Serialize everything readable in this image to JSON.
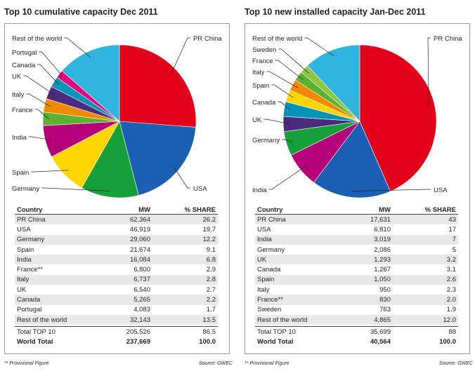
{
  "panels": [
    {
      "title": "Top 10 cumulative capacity Dec 2011",
      "table": {
        "headers": [
          "Country",
          "MW",
          "% SHARE"
        ],
        "rows": [
          [
            "PR China",
            "62,364",
            "26.2"
          ],
          [
            "USA",
            "46,919",
            "19.7"
          ],
          [
            "Germany",
            "29,060",
            "12.2"
          ],
          [
            "Spain",
            "21,674",
            "9.1"
          ],
          [
            "India",
            "16,084",
            "6.8"
          ],
          [
            "France**",
            "6,800",
            "2.9"
          ],
          [
            "Italy",
            "6,737",
            "2.8"
          ],
          [
            "UK",
            "6,540",
            "2.7"
          ],
          [
            "Canada",
            "5,265",
            "2.2"
          ],
          [
            "Portugal",
            "4,083",
            "1.7"
          ],
          [
            "Rest of the world",
            "32,143",
            "13.5"
          ]
        ],
        "total": [
          "Total TOP 10",
          "205,526",
          "86.5"
        ],
        "world": [
          "World Total",
          "237,669",
          "100.0"
        ]
      },
      "footnote": "** Provisional Figure",
      "source": "Source: GWEC"
    },
    {
      "title": "Top 10 new installed capacity Jan-Dec 2011",
      "table": {
        "headers": [
          "Country",
          "MW",
          "% SHARE"
        ],
        "rows": [
          [
            "PR China",
            "17,631",
            "43"
          ],
          [
            "USA",
            "6,810",
            "17"
          ],
          [
            "India",
            "3,019",
            "7"
          ],
          [
            "Germany",
            "2,086",
            "5"
          ],
          [
            "UK",
            "1,293",
            "3.2"
          ],
          [
            "Canada",
            "1,267",
            "3.1"
          ],
          [
            "Spain",
            "1,050",
            "2.6"
          ],
          [
            "Italy",
            "950",
            "2.3"
          ],
          [
            "France**",
            "830",
            "2.0"
          ],
          [
            "Sweden",
            "763",
            "1.9"
          ],
          [
            "Rest of the world",
            "4,865",
            "12.0"
          ]
        ],
        "total": [
          "Total TOP 10",
          "35,699",
          "88"
        ],
        "world": [
          "World Total",
          "40,564",
          "100.0"
        ]
      },
      "footnote": "** Provisional Figure",
      "source": "Source: GWEC"
    }
  ],
  "chart_data": [
    {
      "type": "pie",
      "title": "Top 10 cumulative capacity Dec 2011",
      "slices": [
        {
          "label": "PR China",
          "value": 62364,
          "color": "#e2001a"
        },
        {
          "label": "USA",
          "value": 46919,
          "color": "#1a5fb4"
        },
        {
          "label": "Germany",
          "value": 29060,
          "color": "#16a03a"
        },
        {
          "label": "Spain",
          "value": 21674,
          "color": "#ffd500"
        },
        {
          "label": "India",
          "value": 16084,
          "color": "#b5007a"
        },
        {
          "label": "France",
          "value": 6800,
          "color": "#5bb232"
        },
        {
          "label": "Italy",
          "value": 6737,
          "color": "#f18a00"
        },
        {
          "label": "UK",
          "value": 6540,
          "color": "#4a2b7d"
        },
        {
          "label": "Canada",
          "value": 5265,
          "color": "#0095b6"
        },
        {
          "label": "Portugal",
          "value": 4083,
          "color": "#e6007e"
        },
        {
          "label": "Rest of the world",
          "value": 32143,
          "color": "#2fb4e0"
        }
      ]
    },
    {
      "type": "pie",
      "title": "Top 10 new installed capacity Jan-Dec 2011",
      "slices": [
        {
          "label": "PR China",
          "value": 17631,
          "color": "#e2001a"
        },
        {
          "label": "USA",
          "value": 6810,
          "color": "#1a5fb4"
        },
        {
          "label": "India",
          "value": 3019,
          "color": "#b5007a"
        },
        {
          "label": "Germany",
          "value": 2086,
          "color": "#16a03a"
        },
        {
          "label": "UK",
          "value": 1293,
          "color": "#4a2b7d"
        },
        {
          "label": "Canada",
          "value": 1267,
          "color": "#0095b6"
        },
        {
          "label": "Spain",
          "value": 1050,
          "color": "#ffd500"
        },
        {
          "label": "Italy",
          "value": 950,
          "color": "#f18a00"
        },
        {
          "label": "France",
          "value": 830,
          "color": "#5bb232"
        },
        {
          "label": "Sweden",
          "value": 763,
          "color": "#8dc63f"
        },
        {
          "label": "Rest of the world",
          "value": 4865,
          "color": "#2fb4e0"
        }
      ]
    }
  ]
}
